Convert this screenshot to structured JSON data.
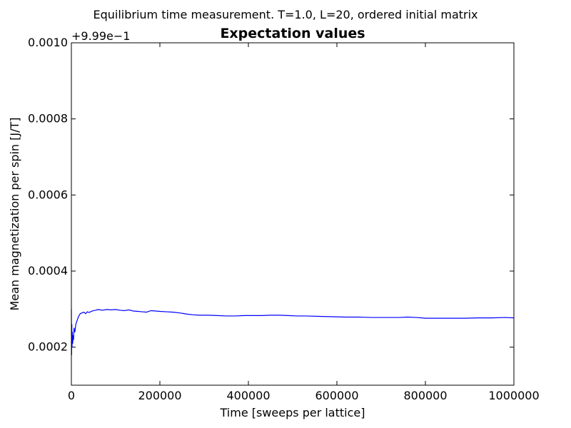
{
  "chart_data": {
    "type": "line",
    "suptitle": "Equilibrium time measurement. T=1.0, L=20, ordered initial matrix",
    "title": "Expectation values",
    "xlabel": "Time [sweeps per lattice]",
    "ylabel": "Mean magnetization per spin [J/T]",
    "y_offset_label": "+9.99e−1",
    "xlim": [
      0,
      1000000
    ],
    "ylim": [
      0.0001,
      0.001
    ],
    "xticks": [
      0,
      200000,
      400000,
      600000,
      800000,
      1000000
    ],
    "xtick_labels": [
      "0",
      "200000",
      "400000",
      "600000",
      "800000",
      "1000000"
    ],
    "yticks": [
      0.0002,
      0.0004,
      0.0006,
      0.0008,
      0.001
    ],
    "ytick_labels": [
      "0.0002",
      "0.0004",
      "0.0006",
      "0.0008",
      "0.0010"
    ],
    "grid": false,
    "color": "#0000ff",
    "series": [
      {
        "x": [
          0,
          500,
          1000,
          1500,
          2000,
          3000,
          4000,
          5000,
          6000,
          8000,
          10000,
          13000,
          16000,
          20000,
          24000,
          28000,
          32000,
          36000,
          40000,
          45000,
          50000,
          55000,
          60000,
          65000,
          70000,
          80000,
          90000,
          100000,
          110000,
          120000,
          130000,
          140000,
          150000,
          160000,
          170000,
          180000,
          190000,
          200000,
          215000,
          230000,
          245000,
          260000,
          275000,
          290000,
          310000,
          330000,
          350000,
          370000,
          390000,
          410000,
          430000,
          450000,
          470000,
          490000,
          510000,
          530000,
          560000,
          590000,
          620000,
          650000,
          680000,
          710000,
          740000,
          760000,
          780000,
          800000,
          830000,
          860000,
          890000,
          920000,
          950000,
          980000,
          1000000
        ],
        "y": [
          0.0003,
          0.00018,
          0.00026,
          0.0002,
          0.00024,
          0.00021,
          0.00023,
          0.00022,
          0.00025,
          0.00024,
          0.00026,
          0.00027,
          0.00028,
          0.000288,
          0.00029,
          0.000292,
          0.000288,
          0.000293,
          0.000291,
          0.000294,
          0.000296,
          0.000297,
          0.000299,
          0.000298,
          0.000297,
          0.000299,
          0.000298,
          0.000299,
          0.000297,
          0.000296,
          0.000298,
          0.000295,
          0.000294,
          0.000293,
          0.000292,
          0.000296,
          0.000295,
          0.000294,
          0.000293,
          0.000292,
          0.00029,
          0.000287,
          0.000285,
          0.000284,
          0.000284,
          0.000283,
          0.000282,
          0.000282,
          0.000283,
          0.000283,
          0.000283,
          0.000284,
          0.000284,
          0.000283,
          0.000282,
          0.000282,
          0.000281,
          0.00028,
          0.000279,
          0.000279,
          0.000278,
          0.000278,
          0.000278,
          0.000279,
          0.000278,
          0.000276,
          0.000276,
          0.000276,
          0.000276,
          0.000277,
          0.000277,
          0.000278,
          0.000277
        ]
      }
    ]
  }
}
